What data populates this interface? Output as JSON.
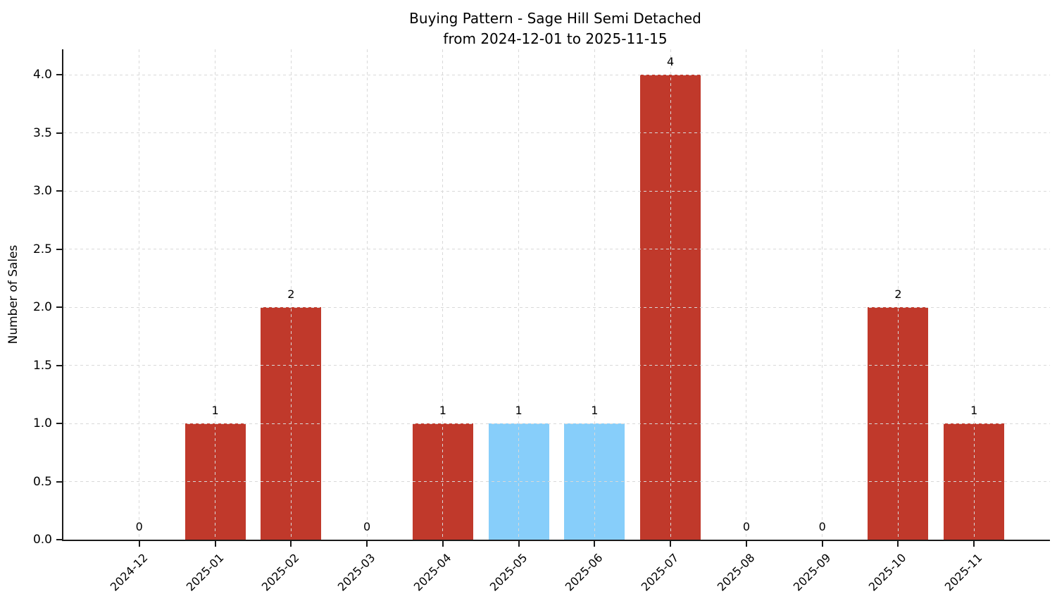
{
  "chart": {
    "title": "Buying Pattern - Sage Hill Semi Detached",
    "subtitle": "from 2024-12-01 to 2025-11-15",
    "ylabel": "Number of Sales"
  },
  "chart_data": {
    "type": "bar",
    "title": "Buying Pattern - Sage Hill Semi Detached",
    "subtitle": "from 2024-12-01 to 2025-11-15",
    "xlabel": "",
    "ylabel": "Number of Sales",
    "categories": [
      "2024-12",
      "2025-01",
      "2025-02",
      "2025-03",
      "2025-04",
      "2025-05",
      "2025-06",
      "2025-07",
      "2025-08",
      "2025-09",
      "2025-10",
      "2025-11"
    ],
    "values": [
      0,
      1,
      2,
      0,
      1,
      1,
      1,
      4,
      0,
      0,
      2,
      1
    ],
    "value_labels": [
      "0",
      "1",
      "2",
      "0",
      "1",
      "1",
      "1",
      "4",
      "0",
      "0",
      "2",
      "1"
    ],
    "bar_colors": [
      "#c0392b",
      "#c0392b",
      "#c0392b",
      "#c0392b",
      "#c0392b",
      "#87cefa",
      "#87cefa",
      "#c0392b",
      "#c0392b",
      "#c0392b",
      "#c0392b",
      "#c0392b"
    ],
    "yticks": [
      0.0,
      0.5,
      1.0,
      1.5,
      2.0,
      2.5,
      3.0,
      3.5,
      4.0
    ],
    "ylim": [
      0,
      4.22
    ],
    "grid": "dashed",
    "legend": "none",
    "tick_rotation": 45,
    "colors": {
      "default_bar": "#c0392b",
      "highlight_bar": "#87cefa",
      "grid": "#d9d9d9",
      "axis": "#1a1a1a",
      "text": "#000000"
    }
  }
}
